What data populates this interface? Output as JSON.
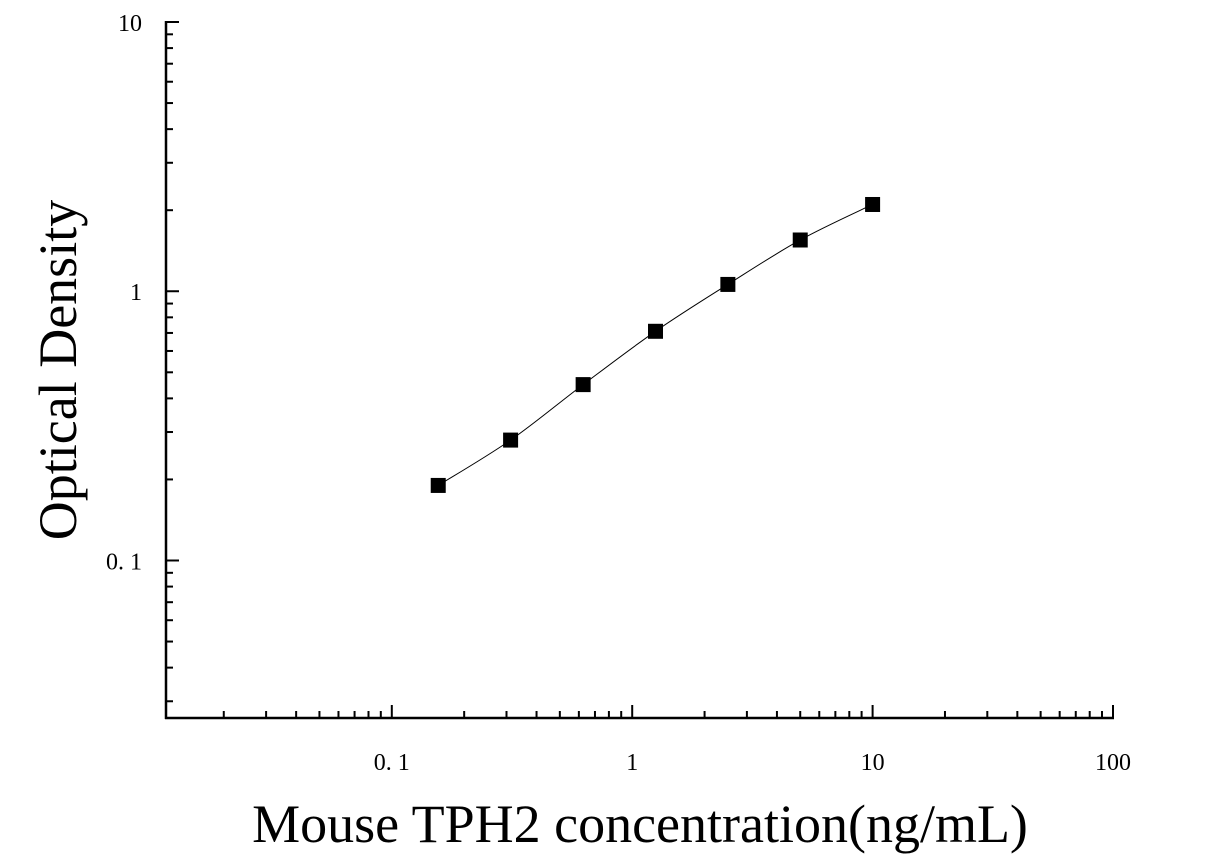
{
  "chart_data": {
    "type": "scatter",
    "title": "",
    "xlabel": "Mouse TPH2 concentration(ng/mL)",
    "ylabel": "Optical Density",
    "x_scale": "log",
    "y_scale": "log",
    "xlim": [
      0.0115,
      100
    ],
    "ylim": [
      0.026,
      10
    ],
    "x_ticks": [
      {
        "value": 0.1,
        "label": "0. 1"
      },
      {
        "value": 1,
        "label": "1"
      },
      {
        "value": 10,
        "label": "10"
      },
      {
        "value": 100,
        "label": "100"
      }
    ],
    "y_ticks": [
      {
        "value": 0.1,
        "label": "0. 1"
      },
      {
        "value": 1,
        "label": "1"
      },
      {
        "value": 10,
        "label": "10"
      }
    ],
    "grid": false,
    "marker": "square",
    "marker_color": "#000000",
    "fit_line": true,
    "series": [
      {
        "x": [
          0.156,
          0.312,
          0.625,
          1.25,
          2.5,
          5,
          10
        ],
        "y": [
          0.19,
          0.28,
          0.45,
          0.71,
          1.06,
          1.55,
          2.1
        ]
      }
    ]
  }
}
